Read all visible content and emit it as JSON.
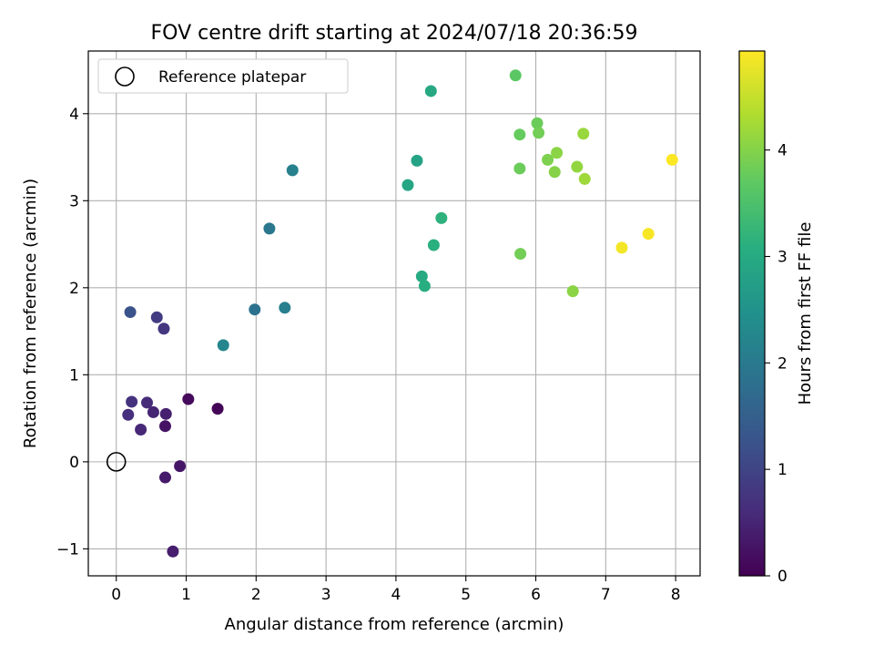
{
  "chart_data": {
    "type": "scatter",
    "title": "FOV centre drift starting at 2024/07/18 20:36:59",
    "xlabel": "Angular distance from reference (arcmin)",
    "ylabel": "Rotation from reference (arcmin)",
    "xlim": [
      -0.4,
      8.35
    ],
    "ylim": [
      -1.31,
      4.72
    ],
    "xticks": [
      0,
      1,
      2,
      3,
      4,
      5,
      6,
      7,
      8
    ],
    "yticks": [
      -1,
      0,
      1,
      2,
      3,
      4
    ],
    "grid": true,
    "legend": {
      "position": "top-left",
      "entries": [
        "Reference platepar"
      ]
    },
    "reference": {
      "x": 0,
      "y": 0
    },
    "colorbar": {
      "label": "Hours from first FF file",
      "colormap": "viridis",
      "range": [
        0,
        4.93
      ],
      "ticks": [
        0,
        1,
        2,
        3,
        4
      ]
    },
    "points": [
      {
        "x": 1.45,
        "y": 0.61,
        "h": 0.05
      },
      {
        "x": 1.03,
        "y": 0.72,
        "h": 0.12
      },
      {
        "x": 0.7,
        "y": 0.41,
        "h": 0.25
      },
      {
        "x": 0.91,
        "y": -0.05,
        "h": 0.3
      },
      {
        "x": 0.7,
        "y": -0.18,
        "h": 0.35
      },
      {
        "x": 0.81,
        "y": -1.03,
        "h": 0.4
      },
      {
        "x": 0.71,
        "y": 0.55,
        "h": 0.45
      },
      {
        "x": 0.53,
        "y": 0.57,
        "h": 0.5
      },
      {
        "x": 0.35,
        "y": 0.37,
        "h": 0.55
      },
      {
        "x": 0.44,
        "y": 0.68,
        "h": 0.6
      },
      {
        "x": 0.17,
        "y": 0.54,
        "h": 0.65
      },
      {
        "x": 0.22,
        "y": 0.69,
        "h": 0.7
      },
      {
        "x": 0.68,
        "y": 1.53,
        "h": 0.78
      },
      {
        "x": 0.58,
        "y": 1.66,
        "h": 0.85
      },
      {
        "x": 0.2,
        "y": 1.72,
        "h": 1.25
      },
      {
        "x": 1.53,
        "y": 1.34,
        "h": 2.25
      },
      {
        "x": 1.98,
        "y": 1.75,
        "h": 1.85
      },
      {
        "x": 2.41,
        "y": 1.77,
        "h": 2.1
      },
      {
        "x": 2.19,
        "y": 2.68,
        "h": 1.95
      },
      {
        "x": 2.52,
        "y": 3.35,
        "h": 2.15
      },
      {
        "x": 4.17,
        "y": 3.18,
        "h": 2.9
      },
      {
        "x": 4.3,
        "y": 3.46,
        "h": 2.85
      },
      {
        "x": 4.5,
        "y": 4.26,
        "h": 2.95
      },
      {
        "x": 4.37,
        "y": 2.13,
        "h": 3.0
      },
      {
        "x": 4.41,
        "y": 2.02,
        "h": 3.05
      },
      {
        "x": 4.54,
        "y": 2.49,
        "h": 3.1
      },
      {
        "x": 4.65,
        "y": 2.8,
        "h": 3.15
      },
      {
        "x": 5.71,
        "y": 4.44,
        "h": 3.65
      },
      {
        "x": 5.77,
        "y": 3.76,
        "h": 3.75
      },
      {
        "x": 5.77,
        "y": 3.37,
        "h": 3.8
      },
      {
        "x": 5.78,
        "y": 2.39,
        "h": 3.85
      },
      {
        "x": 6.02,
        "y": 3.89,
        "h": 3.8
      },
      {
        "x": 6.04,
        "y": 3.78,
        "h": 3.85
      },
      {
        "x": 6.17,
        "y": 3.47,
        "h": 3.95
      },
      {
        "x": 6.27,
        "y": 3.33,
        "h": 4.0
      },
      {
        "x": 6.3,
        "y": 3.55,
        "h": 4.05
      },
      {
        "x": 6.53,
        "y": 1.96,
        "h": 4.05
      },
      {
        "x": 6.59,
        "y": 3.39,
        "h": 4.1
      },
      {
        "x": 6.68,
        "y": 3.77,
        "h": 4.15
      },
      {
        "x": 6.7,
        "y": 3.25,
        "h": 4.2
      },
      {
        "x": 7.23,
        "y": 2.46,
        "h": 4.85
      },
      {
        "x": 7.61,
        "y": 2.62,
        "h": 4.88
      },
      {
        "x": 7.95,
        "y": 3.47,
        "h": 4.92
      }
    ]
  }
}
